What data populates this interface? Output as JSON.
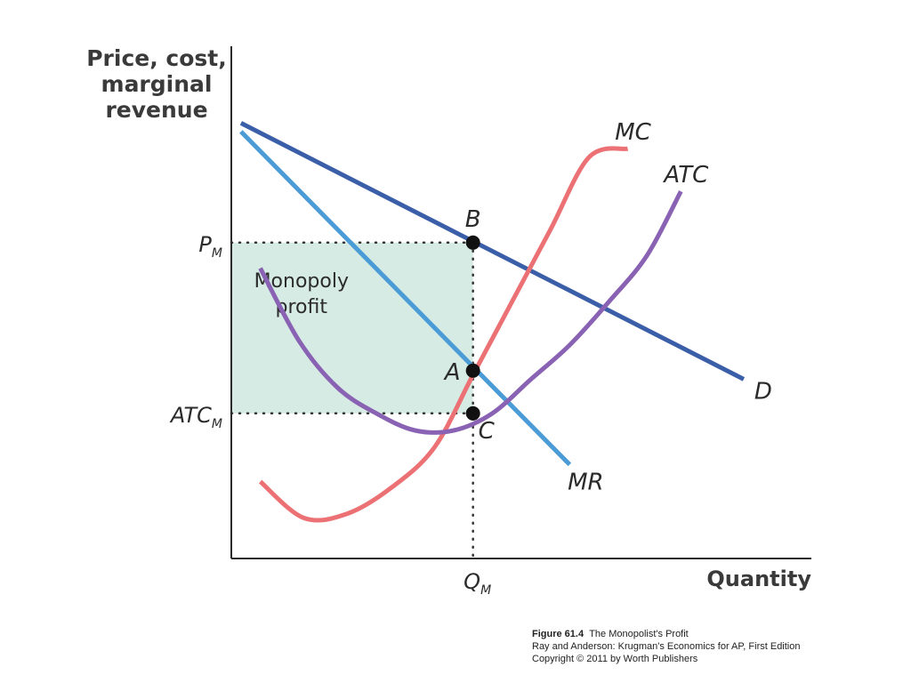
{
  "chart_data": {
    "type": "line",
    "ylabel": [
      "Price, cost,",
      "marginal",
      "revenue"
    ],
    "xlabel": "Quantity",
    "x_ticks": [
      {
        "name": "Q",
        "sub": "M",
        "x": 5
      }
    ],
    "y_ticks": [
      {
        "name": "P",
        "sub": "M",
        "y": 7.4
      },
      {
        "name": "ATC",
        "sub": "M",
        "y": 3.4
      }
    ],
    "xlim": [
      0,
      12
    ],
    "ylim": [
      0,
      12
    ],
    "series": [
      {
        "name": "D",
        "color": "#3b5ea8",
        "x": [
          0.2,
          10.6
        ],
        "y": [
          10.2,
          4.2
        ]
      },
      {
        "name": "MR",
        "color": "#4a9bd6",
        "x": [
          0.2,
          7.0
        ],
        "y": [
          10.0,
          2.2
        ]
      },
      {
        "name": "MC",
        "color": "#ec7174",
        "x": [
          0.6,
          1.5,
          2.4,
          3.3,
          4.2,
          5.0,
          5.8,
          6.6,
          7.4,
          8.2
        ],
        "y": [
          1.8,
          0.95,
          1.05,
          1.65,
          2.6,
          4.3,
          6.0,
          7.7,
          9.4,
          9.6
        ]
      },
      {
        "name": "ATC",
        "color": "#8a62b3",
        "x": [
          0.6,
          1.4,
          2.2,
          3.0,
          3.8,
          4.6,
          5.4,
          6.2,
          7.0,
          7.8,
          8.6,
          9.3
        ],
        "y": [
          6.8,
          5.1,
          4.0,
          3.4,
          3.0,
          3.0,
          3.4,
          4.2,
          5.0,
          6.0,
          7.1,
          8.6
        ]
      }
    ],
    "points": [
      {
        "name": "B",
        "x": 5,
        "y": 7.4
      },
      {
        "name": "A",
        "x": 5,
        "y": 4.4
      },
      {
        "name": "C",
        "x": 5,
        "y": 3.4
      }
    ],
    "shaded_area": {
      "label": [
        "Monopoly",
        "profit"
      ],
      "x": [
        0,
        5
      ],
      "y": [
        3.4,
        7.4
      ],
      "color": "#d5ebe4"
    }
  },
  "caption": {
    "figure_no": "Figure 61.4",
    "figure_title": "The Monopolist's Profit",
    "line2": "Ray and Anderson: Krugman's Economics for AP, First Edition",
    "line3": "Copyright © 2011 by Worth Publishers"
  }
}
